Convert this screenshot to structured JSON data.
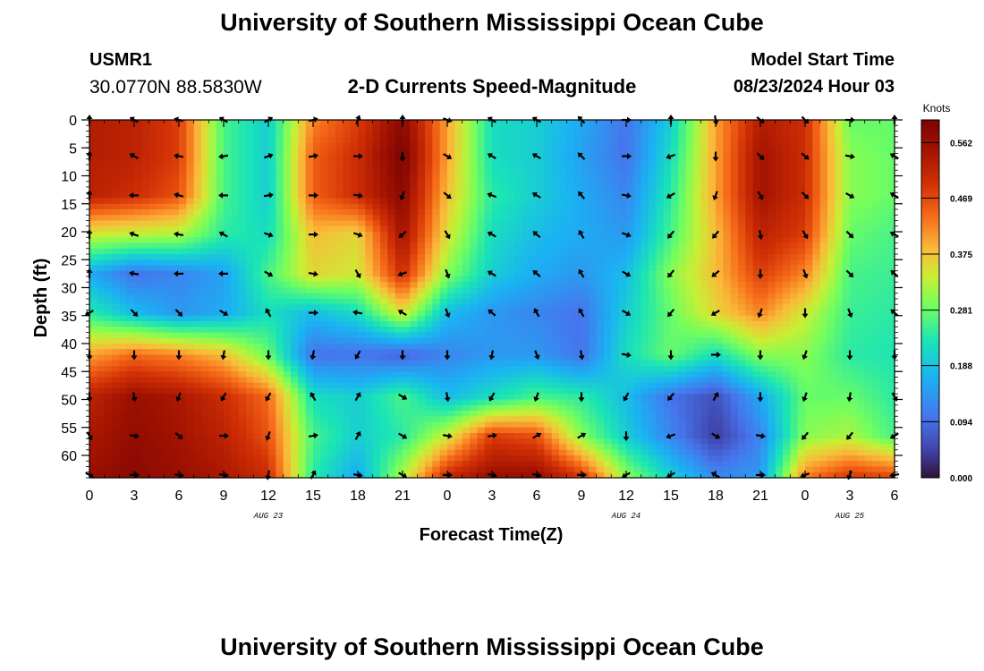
{
  "page": {
    "title": "University of Southern Mississippi Ocean Cube",
    "bottom_title": "University of Southern Mississippi Ocean Cube",
    "station_id": "USMR1",
    "station_coords": "30.0770N  88.5830W",
    "subtitle": "2-D Currents Speed-Magnitude",
    "start_label": "Model Start Time",
    "start_value": "08/23/2024 Hour 03"
  },
  "chart_data": {
    "type": "heatmap",
    "title": "2-D Currents Speed-Magnitude",
    "xlabel": "Forecast Time(Z)",
    "ylabel": "Depth (ft)",
    "x_tick_labels": [
      "0",
      "3",
      "6",
      "9",
      "12",
      "15",
      "18",
      "21",
      "0",
      "3",
      "6",
      "9",
      "12",
      "15",
      "18",
      "21",
      "0",
      "3",
      "6"
    ],
    "x_hours": [
      0,
      3,
      6,
      9,
      12,
      15,
      18,
      21,
      24,
      27,
      30,
      33,
      36,
      39,
      42,
      45,
      48,
      51,
      54
    ],
    "xlim": [
      0,
      54
    ],
    "date_labels": [
      {
        "text": "AUG 23",
        "hour": 12
      },
      {
        "text": "AUG 24",
        "hour": 36
      },
      {
        "text": "AUG 25",
        "hour": 51
      }
    ],
    "y_ticks": [
      0,
      5,
      10,
      15,
      20,
      25,
      30,
      35,
      40,
      45,
      50,
      55,
      60
    ],
    "ylim": [
      0,
      64
    ],
    "colorbar": {
      "label": "Knots",
      "ticks": [
        "0.562",
        "0.469",
        "0.375",
        "0.281",
        "0.188",
        "0.094",
        "0.000"
      ],
      "range": [
        0,
        0.6
      ]
    },
    "depths": [
      0,
      6.5,
      13.5,
      20.5,
      27.5,
      34.5,
      42,
      49.5,
      56.5,
      63.5
    ],
    "times": [
      0,
      3,
      6,
      9,
      12,
      15,
      18,
      21,
      24,
      27,
      30,
      33,
      36,
      39,
      42,
      45,
      48,
      51,
      54
    ],
    "speed_knots": [
      [
        0.53,
        0.52,
        0.48,
        0.26,
        0.2,
        0.42,
        0.48,
        0.58,
        0.4,
        0.22,
        0.2,
        0.16,
        0.1,
        0.2,
        0.4,
        0.53,
        0.5,
        0.28,
        0.28
      ],
      [
        0.53,
        0.52,
        0.48,
        0.26,
        0.2,
        0.45,
        0.5,
        0.6,
        0.4,
        0.22,
        0.2,
        0.15,
        0.1,
        0.22,
        0.4,
        0.55,
        0.5,
        0.3,
        0.28
      ],
      [
        0.52,
        0.5,
        0.46,
        0.26,
        0.2,
        0.45,
        0.5,
        0.58,
        0.38,
        0.24,
        0.2,
        0.16,
        0.12,
        0.24,
        0.4,
        0.55,
        0.5,
        0.3,
        0.28
      ],
      [
        0.34,
        0.33,
        0.32,
        0.24,
        0.22,
        0.38,
        0.36,
        0.55,
        0.35,
        0.22,
        0.18,
        0.16,
        0.14,
        0.26,
        0.38,
        0.52,
        0.48,
        0.28,
        0.26
      ],
      [
        0.16,
        0.1,
        0.12,
        0.15,
        0.26,
        0.36,
        0.34,
        0.5,
        0.3,
        0.2,
        0.16,
        0.14,
        0.18,
        0.3,
        0.38,
        0.48,
        0.42,
        0.26,
        0.25
      ],
      [
        0.24,
        0.18,
        0.14,
        0.16,
        0.22,
        0.18,
        0.22,
        0.35,
        0.18,
        0.14,
        0.12,
        0.1,
        0.2,
        0.28,
        0.36,
        0.42,
        0.34,
        0.25,
        0.24
      ],
      [
        0.4,
        0.44,
        0.42,
        0.38,
        0.28,
        0.1,
        0.1,
        0.08,
        0.12,
        0.14,
        0.14,
        0.1,
        0.22,
        0.28,
        0.22,
        0.3,
        0.3,
        0.24,
        0.23
      ],
      [
        0.52,
        0.56,
        0.54,
        0.5,
        0.44,
        0.22,
        0.2,
        0.26,
        0.18,
        0.22,
        0.26,
        0.24,
        0.18,
        0.1,
        0.06,
        0.16,
        0.28,
        0.28,
        0.24
      ],
      [
        0.54,
        0.57,
        0.55,
        0.52,
        0.46,
        0.26,
        0.2,
        0.24,
        0.34,
        0.48,
        0.46,
        0.3,
        0.2,
        0.12,
        0.04,
        0.12,
        0.3,
        0.32,
        0.26
      ],
      [
        0.56,
        0.58,
        0.56,
        0.54,
        0.5,
        0.24,
        0.16,
        0.32,
        0.5,
        0.56,
        0.56,
        0.48,
        0.3,
        0.2,
        0.12,
        0.14,
        0.42,
        0.48,
        0.46
      ]
    ],
    "arrow_hours": [
      0,
      3,
      6,
      9,
      12,
      15,
      18,
      21,
      24,
      27,
      30,
      33,
      36,
      39,
      42,
      45,
      48,
      51,
      54
    ],
    "arrow_depths": [
      0,
      6.5,
      13.5,
      20.5,
      27.5,
      34.5,
      42,
      49.5,
      56.5,
      63.5
    ],
    "arrow_dir_deg": [
      [
        0,
        300,
        285,
        300,
        60,
        75,
        20,
        0,
        110,
        300,
        300,
        315,
        90,
        0,
        170,
        130,
        135,
        90,
        0
      ],
      [
        0,
        300,
        280,
        260,
        70,
        80,
        90,
        180,
        120,
        300,
        300,
        315,
        90,
        250,
        180,
        135,
        130,
        100,
        300
      ],
      [
        0,
        270,
        285,
        270,
        80,
        90,
        100,
        200,
        130,
        290,
        300,
        320,
        100,
        240,
        200,
        150,
        135,
        120,
        300
      ],
      [
        0,
        290,
        280,
        300,
        110,
        90,
        110,
        230,
        150,
        300,
        310,
        330,
        110,
        220,
        220,
        170,
        150,
        135,
        300
      ],
      [
        0,
        280,
        270,
        270,
        120,
        100,
        150,
        250,
        160,
        300,
        310,
        330,
        120,
        220,
        230,
        180,
        160,
        135,
        310
      ],
      [
        240,
        135,
        135,
        120,
        330,
        90,
        280,
        300,
        160,
        310,
        330,
        330,
        120,
        220,
        240,
        200,
        180,
        160,
        310
      ],
      [
        180,
        180,
        180,
        190,
        180,
        190,
        210,
        180,
        180,
        190,
        160,
        170,
        100,
        180,
        90,
        180,
        200,
        180,
        180
      ],
      [
        180,
        170,
        200,
        210,
        210,
        330,
        30,
        120,
        170,
        210,
        200,
        180,
        210,
        220,
        30,
        180,
        200,
        190,
        150
      ],
      [
        150,
        100,
        130,
        90,
        200,
        80,
        30,
        120,
        100,
        80,
        60,
        60,
        180,
        250,
        120,
        100,
        220,
        220,
        240
      ],
      [
        120,
        90,
        100,
        100,
        190,
        30,
        100,
        120,
        90,
        100,
        100,
        90,
        240,
        240,
        300,
        90,
        250,
        200,
        260
      ]
    ]
  }
}
